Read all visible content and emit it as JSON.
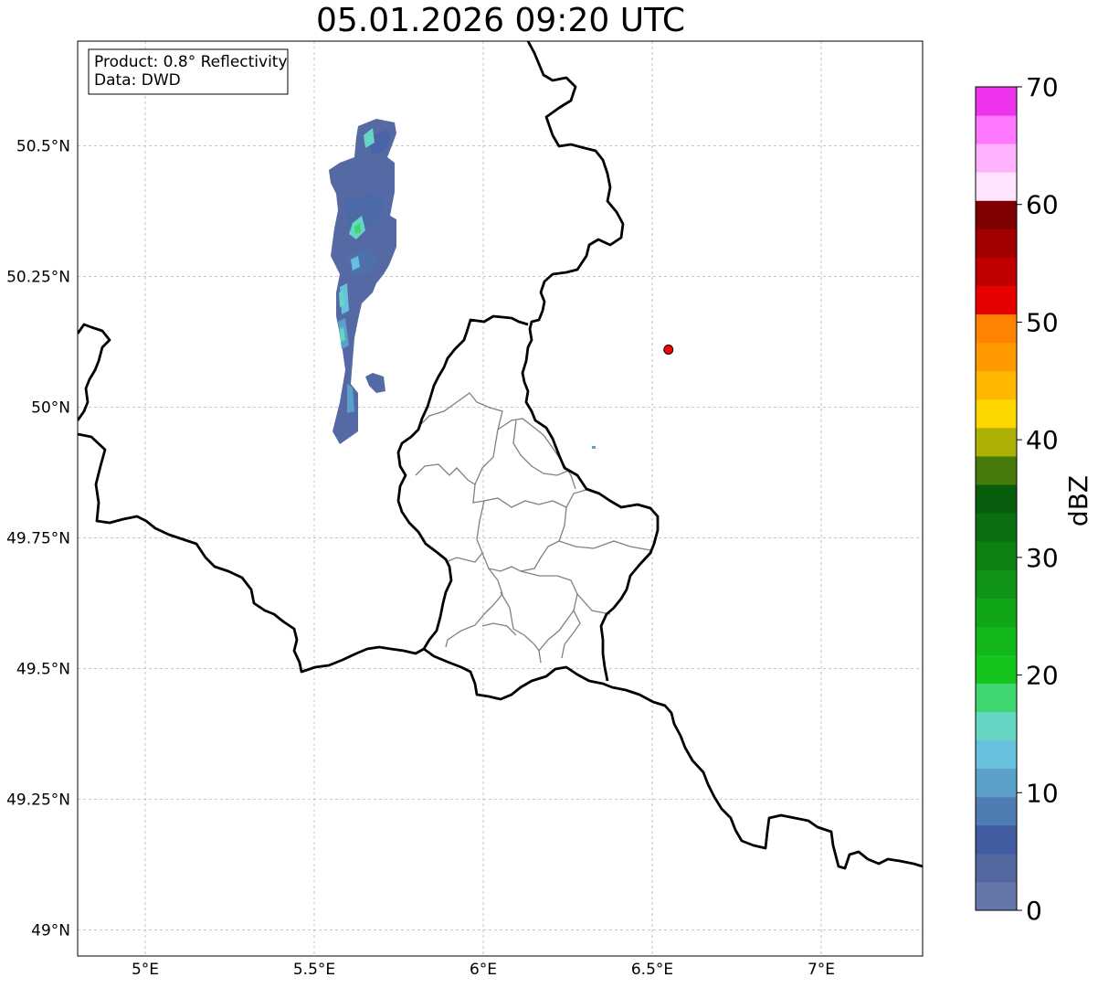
{
  "title": "05.01.2026 09:20 UTC",
  "info_box": {
    "product": "Product: 0.8° Reflectivity",
    "source": "Data: DWD"
  },
  "axes": {
    "lon_range": [
      4.8,
      7.3
    ],
    "lat_range": [
      48.95,
      50.7
    ],
    "lon_ticks": [
      5.0,
      5.5,
      6.0,
      6.5,
      7.0
    ],
    "lon_labels": [
      "5°E",
      "5.5°E",
      "6°E",
      "6.5°E",
      "7°E"
    ],
    "lat_ticks": [
      49.0,
      49.25,
      49.5,
      49.75,
      50.0,
      50.25,
      50.5
    ],
    "lat_labels": [
      "49°N",
      "49.25°N",
      "49.5°N",
      "49.75°N",
      "50°N",
      "50.25°N",
      "50.5°N"
    ],
    "grid": true
  },
  "radar_site": {
    "lon": 6.548,
    "lat": 50.11,
    "color": "#ff0000"
  },
  "colorbar": {
    "label": "dBZ",
    "min": 0,
    "max": 70,
    "ticks": [
      0,
      10,
      20,
      30,
      40,
      50,
      60,
      70
    ],
    "colors": [
      "#6577a8",
      "#55679f",
      "#415ca0",
      "#4f7db3",
      "#5ba0c8",
      "#68c1dc",
      "#66d6c4",
      "#3fd56f",
      "#14c61c",
      "#12b71a",
      "#10a617",
      "#0f9415",
      "#0d8213",
      "#0a6f10",
      "#085e0d",
      "#477a0a",
      "#adb106",
      "#ffd700",
      "#ffb700",
      "#ff9900",
      "#ff8200",
      "#e60000",
      "#c00000",
      "#a00000",
      "#7f0000",
      "#ffe3ff",
      "#ffb3ff",
      "#ff77ff",
      "#ee33ee"
    ]
  }
}
